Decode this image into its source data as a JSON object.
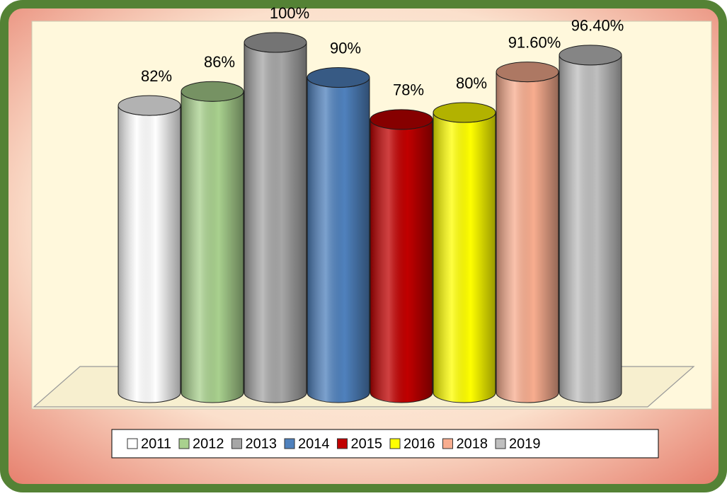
{
  "chart_data": {
    "type": "bar",
    "series": [
      {
        "name": "2011",
        "color": "#ffffff",
        "values": [
          82
        ],
        "value_labels": [
          "82%"
        ]
      },
      {
        "name": "2012",
        "color": "#a9d18e",
        "values": [
          86
        ],
        "value_labels": [
          "86%"
        ]
      },
      {
        "name": "2013",
        "color": "#a6a6a6",
        "values": [
          100
        ],
        "value_labels": [
          "100%"
        ]
      },
      {
        "name": "2014",
        "color": "#4f81bd",
        "values": [
          90
        ],
        "value_labels": [
          "90%"
        ]
      },
      {
        "name": "2015",
        "color": "#c00000",
        "values": [
          78
        ],
        "value_labels": [
          "78%"
        ]
      },
      {
        "name": "2016",
        "color": "#ffff00",
        "values": [
          80
        ],
        "value_labels": [
          "80%"
        ]
      },
      {
        "name": "2018",
        "color": "#f8ad8f",
        "values": [
          91.6
        ],
        "value_labels": [
          "91.60%"
        ]
      },
      {
        "name": "2019",
        "color": "#bfbfbf",
        "values": [
          96.4
        ],
        "value_labels": [
          "96.40%"
        ]
      }
    ]
  }
}
